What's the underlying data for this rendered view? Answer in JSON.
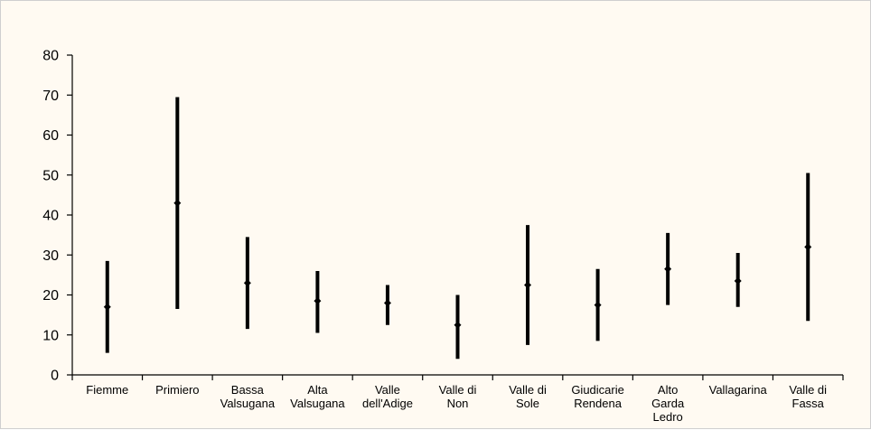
{
  "chart_data": {
    "type": "range",
    "title": "",
    "xlabel": "",
    "ylabel": "",
    "ylim": [
      0,
      80
    ],
    "yticks": [
      0,
      10,
      20,
      30,
      40,
      50,
      60,
      70,
      80
    ],
    "grid": false,
    "legend": "none",
    "categories": [
      "Fiemme",
      "Primiero",
      "Bassa Valsugana",
      "Alta Valsugana",
      "Valle dell'Adige",
      "Valle di Non",
      "Valle di Sole",
      "Giudicarie Rendena",
      "Alto Garda Ledro",
      "Vallagarina",
      "Valle di Fassa"
    ],
    "series": [
      {
        "low": [
          5.5,
          16.5,
          11.5,
          10.5,
          12.5,
          4,
          7.5,
          8.5,
          17.5,
          17,
          13.5
        ],
        "value": [
          17,
          43,
          23,
          18.5,
          18,
          12.5,
          22.5,
          17.5,
          26.5,
          23.5,
          32
        ],
        "high": [
          28.5,
          69.5,
          34.5,
          26,
          22.5,
          20,
          37.5,
          26.5,
          35.5,
          30.5,
          50.5
        ],
        "color": "#000000"
      }
    ]
  }
}
